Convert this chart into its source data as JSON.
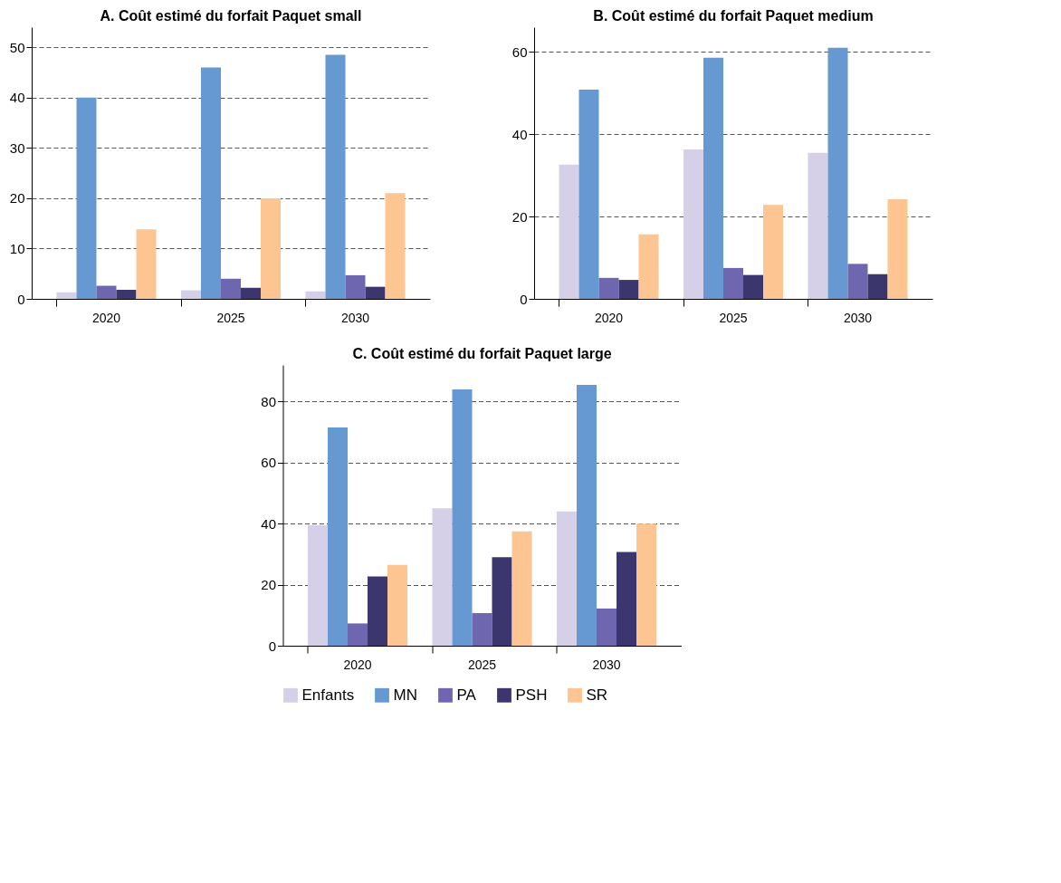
{
  "chart_data": [
    {
      "type": "bar",
      "title": "A. Coût estimé du forfait Paquet small",
      "categories": [
        "2020",
        "2025",
        "2030"
      ],
      "ylim": [
        0,
        54
      ],
      "yticks": [
        0,
        10,
        20,
        30,
        40,
        50
      ],
      "grid": "y",
      "series": [
        {
          "color": "#d5cfe8",
          "values": [
            1.3,
            1.7,
            1.5
          ]
        },
        {
          "color": "#6699d2",
          "values": [
            40,
            46,
            48.5
          ]
        },
        {
          "color": "#6e66ae",
          "values": [
            2.6,
            4,
            4.7
          ]
        },
        {
          "color": "#3c366e",
          "values": [
            1.8,
            2.2,
            2.4
          ]
        },
        {
          "color": "#fcc591",
          "values": [
            13.8,
            20,
            21
          ]
        }
      ]
    },
    {
      "type": "bar",
      "title": "B. Coût estimé du forfait Paquet medium",
      "categories": [
        "2020",
        "2025",
        "2030"
      ],
      "ylim": [
        0,
        66
      ],
      "yticks": [
        0,
        20,
        40,
        60
      ],
      "grid": "y",
      "series": [
        {
          "color": "#d5cfe8",
          "values": [
            32.6,
            36.3,
            35.5
          ]
        },
        {
          "color": "#6699d2",
          "values": [
            50.8,
            58.6,
            61
          ]
        },
        {
          "color": "#6e66ae",
          "values": [
            5.1,
            7.5,
            8.5
          ]
        },
        {
          "color": "#3c366e",
          "values": [
            4.6,
            5.8,
            6
          ]
        },
        {
          "color": "#fcc591",
          "values": [
            15.7,
            22.8,
            24.2
          ]
        }
      ]
    },
    {
      "type": "bar",
      "title": "C. Coût estimé du forfait Paquet large",
      "categories": [
        "2020",
        "2025",
        "2030"
      ],
      "ylim": [
        0,
        92
      ],
      "yticks": [
        0,
        20,
        40,
        60,
        80
      ],
      "grid": "y",
      "legend": "bottom",
      "series": [
        {
          "name": "Enfants",
          "color": "#d5cfe8",
          "values": [
            39.5,
            45,
            44
          ]
        },
        {
          "name": "MN",
          "color": "#6699d2",
          "values": [
            71.5,
            84,
            85.5
          ]
        },
        {
          "name": "PA",
          "color": "#6e66ae",
          "values": [
            7.3,
            10.7,
            12.2
          ]
        },
        {
          "name": "PSH",
          "color": "#3c366e",
          "values": [
            22.7,
            29,
            30.7
          ]
        },
        {
          "name": "SR",
          "color": "#fcc591",
          "values": [
            26.5,
            37.5,
            40
          ]
        }
      ]
    }
  ]
}
